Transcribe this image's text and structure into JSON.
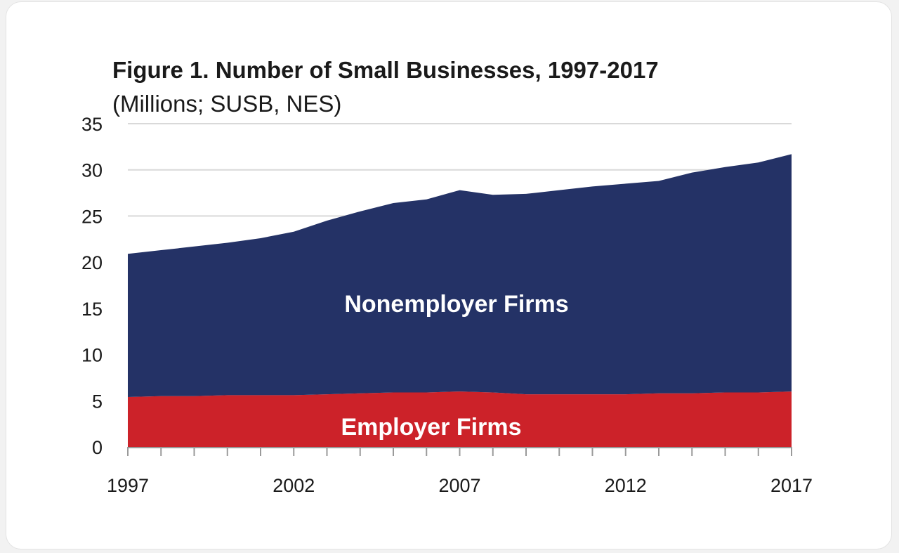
{
  "chart_data": {
    "type": "area",
    "stacked": true,
    "title_bold": "Figure 1. Number of Small Businesses, 1997-2017",
    "title_light": " (Millions; SUSB, NES)",
    "xlabel": "",
    "ylabel": "",
    "x": [
      1997,
      1998,
      1999,
      2000,
      2001,
      2002,
      2003,
      2004,
      2005,
      2006,
      2007,
      2008,
      2009,
      2010,
      2011,
      2012,
      2013,
      2014,
      2015,
      2016,
      2017
    ],
    "x_ticks": [
      "1997",
      "2002",
      "2007",
      "2012",
      "2017"
    ],
    "y_ticks": [
      "0",
      "5",
      "10",
      "15",
      "20",
      "25",
      "30",
      "35"
    ],
    "ylim": [
      0,
      35
    ],
    "grid": "horizontal",
    "series": [
      {
        "name": "Employer Firms",
        "color": "#cc2229",
        "values": [
          5.4,
          5.5,
          5.5,
          5.6,
          5.6,
          5.6,
          5.7,
          5.8,
          5.9,
          5.9,
          6.0,
          5.9,
          5.7,
          5.7,
          5.7,
          5.7,
          5.8,
          5.8,
          5.9,
          5.9,
          6.0
        ]
      },
      {
        "name": "Nonemployer Firms",
        "color": "#243266",
        "values": [
          15.5,
          15.8,
          16.2,
          16.5,
          17.0,
          17.7,
          18.8,
          19.7,
          20.5,
          20.9,
          21.8,
          21.4,
          21.7,
          22.1,
          22.5,
          22.8,
          23.0,
          23.9,
          24.4,
          24.9,
          25.7
        ]
      }
    ]
  }
}
